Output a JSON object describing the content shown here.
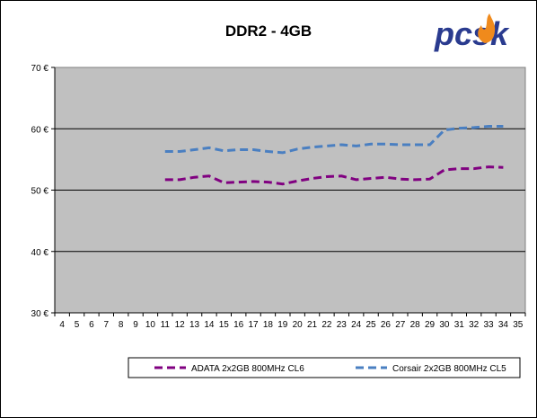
{
  "logo": {
    "text": "pcsk",
    "brand_color": "#2a3b8f",
    "flame_color": "#f08a1c"
  },
  "chart_data": {
    "type": "line",
    "title": "DDR2 - 4GB",
    "xlabel": "",
    "ylabel": "",
    "x_ticks": [
      4,
      5,
      6,
      7,
      8,
      9,
      10,
      11,
      12,
      13,
      14,
      15,
      16,
      17,
      18,
      19,
      20,
      21,
      22,
      23,
      24,
      25,
      26,
      27,
      28,
      29,
      30,
      31,
      32,
      33,
      34,
      35
    ],
    "y_ticks": [
      30,
      40,
      50,
      60,
      70
    ],
    "y_tick_labels": [
      "30 €",
      "40 €",
      "50 €",
      "60 €",
      "70 €"
    ],
    "xlim": [
      4,
      35
    ],
    "ylim": [
      30,
      70
    ],
    "grid": true,
    "legend_position": "bottom-right",
    "series": [
      {
        "name": "ADATA 2x2GB 800MHz CL6",
        "color": "#800080",
        "x": [
          11,
          12,
          13,
          14,
          15,
          16,
          17,
          18,
          19,
          20,
          21,
          22,
          23,
          24,
          25,
          26,
          27,
          28,
          29,
          30,
          31,
          32,
          33,
          34
        ],
        "values": [
          51.7,
          51.7,
          52.1,
          52.3,
          51.2,
          51.3,
          51.4,
          51.3,
          51.0,
          51.5,
          51.9,
          52.2,
          52.3,
          51.7,
          51.9,
          52.1,
          51.8,
          51.7,
          51.8,
          53.3,
          53.5,
          53.5,
          53.8,
          53.7
        ]
      },
      {
        "name": "Corsair 2x2GB 800MHz CL5",
        "color": "#4a7fc1",
        "x": [
          11,
          12,
          13,
          14,
          15,
          16,
          17,
          18,
          19,
          20,
          21,
          22,
          23,
          24,
          25,
          26,
          27,
          28,
          29,
          30,
          31,
          32,
          33,
          34
        ],
        "values": [
          56.3,
          56.3,
          56.6,
          56.9,
          56.4,
          56.6,
          56.6,
          56.3,
          56.1,
          56.7,
          57.0,
          57.2,
          57.4,
          57.2,
          57.5,
          57.5,
          57.4,
          57.4,
          57.4,
          59.8,
          60.1,
          60.2,
          60.4,
          60.4
        ]
      }
    ]
  }
}
